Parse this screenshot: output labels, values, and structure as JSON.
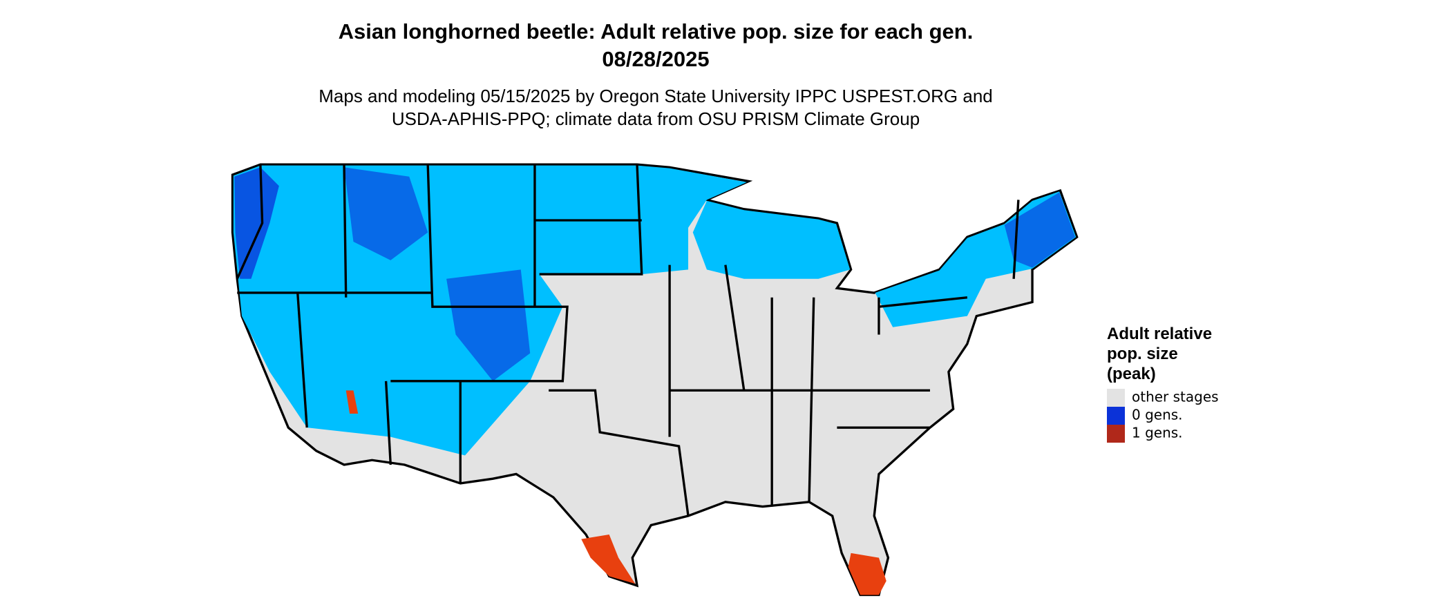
{
  "title": "Asian longhorned beetle: Adult relative pop. size for each gen.",
  "date": "08/28/2025",
  "subtitle": [
    "Maps and modeling 05/15/2025 by Oregon State University IPPC USPEST.ORG and",
    "USDA-APHIS-PPQ; climate data from OSU PRISM Climate Group"
  ],
  "legend": {
    "title": [
      "Adult relative",
      "pop. size",
      "(peak)"
    ],
    "items": [
      {
        "label": "other stages",
        "color": "#e3e3e3"
      },
      {
        "label": "0 gens.",
        "color": "#0b32d8"
      },
      {
        "label": "1 gens.",
        "color": "#b0281a"
      }
    ]
  }
}
